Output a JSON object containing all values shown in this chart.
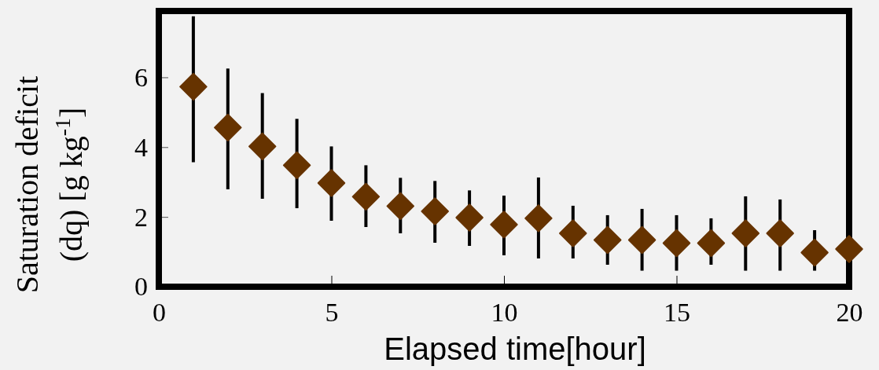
{
  "chart_data": {
    "type": "scatter",
    "xlabel": "Elapsed time[hour]",
    "ylabel": "Saturation deficit\n(dq) [g kg$^{-1}$]",
    "x": [
      1,
      2,
      3,
      4,
      5,
      6,
      7,
      8,
      9,
      10,
      11,
      12,
      13,
      14,
      15,
      16,
      17,
      18,
      19,
      20
    ],
    "series": [
      {
        "color": "#663300",
        "values": [
          5.73,
          4.56,
          4.02,
          3.48,
          2.97,
          2.58,
          2.31,
          2.16,
          1.98,
          1.78,
          1.96,
          1.53,
          1.34,
          1.34,
          1.25,
          1.25,
          1.53,
          1.53,
          0.98,
          1.08
        ],
        "errors": [
          [
            3.57,
            7.75
          ],
          [
            2.79,
            6.25
          ],
          [
            2.52,
            5.55
          ],
          [
            2.25,
            4.81
          ],
          [
            1.89,
            4.02
          ],
          [
            1.71,
            3.48
          ],
          [
            1.53,
            3.12
          ],
          [
            1.26,
            3.03
          ],
          [
            1.17,
            2.76
          ],
          [
            0.9,
            2.61
          ],
          [
            0.81,
            3.13
          ],
          [
            0.81,
            2.32
          ],
          [
            0.63,
            2.05
          ],
          [
            0.46,
            2.23
          ],
          [
            0.46,
            2.05
          ],
          [
            0.63,
            1.96
          ],
          [
            0.46,
            2.59
          ],
          [
            0.46,
            2.5
          ],
          [
            0.46,
            1.62
          ],
          null
        ]
      }
    ],
    "marker": "diamond",
    "grid": false,
    "xlim": [
      0,
      20
    ],
    "xticks": [
      0,
      5,
      10,
      15,
      20
    ],
    "ylim": [
      0,
      7.9
    ],
    "yticks": [
      0,
      2,
      4,
      6
    ]
  }
}
